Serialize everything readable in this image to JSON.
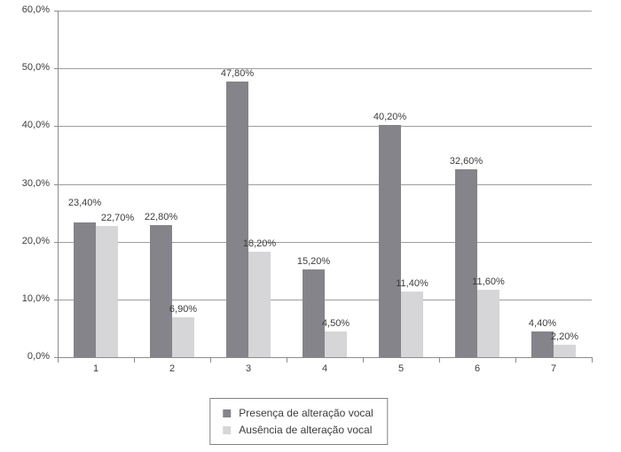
{
  "chart_data": {
    "type": "bar",
    "categories": [
      "1",
      "2",
      "3",
      "4",
      "5",
      "6",
      "7"
    ],
    "series": [
      {
        "name": "Presença de alteração vocal",
        "color": "#84848a",
        "values": [
          23.4,
          22.8,
          47.8,
          15.2,
          40.2,
          32.6,
          4.4
        ],
        "labels": [
          "23,40%",
          "22,80%",
          "47,80%",
          "15,20%",
          "40,20%",
          "32,60%",
          "4,40%"
        ]
      },
      {
        "name": "Ausência de alteração vocal",
        "color": "#d6d6d8",
        "values": [
          22.7,
          6.9,
          18.2,
          4.5,
          11.4,
          11.6,
          2.2
        ],
        "labels": [
          "22,70%",
          "6,90%",
          "18,20%",
          "4,50%",
          "11,40%",
          "11,60%",
          "2,20%"
        ]
      }
    ],
    "ylim": [
      0,
      60
    ],
    "ytick_labels": [
      "0,0%",
      "10,0%",
      "20,0%",
      "30,0%",
      "40,0%",
      "50,0%",
      "60,0%"
    ],
    "grid": true,
    "legend_position": "bottom"
  },
  "colors": {
    "background": "#ffffff",
    "gridline": "#9e9e9e",
    "axis": "#8c8c8c",
    "text": "#3c3c3c",
    "legend_border": "#808080"
  }
}
